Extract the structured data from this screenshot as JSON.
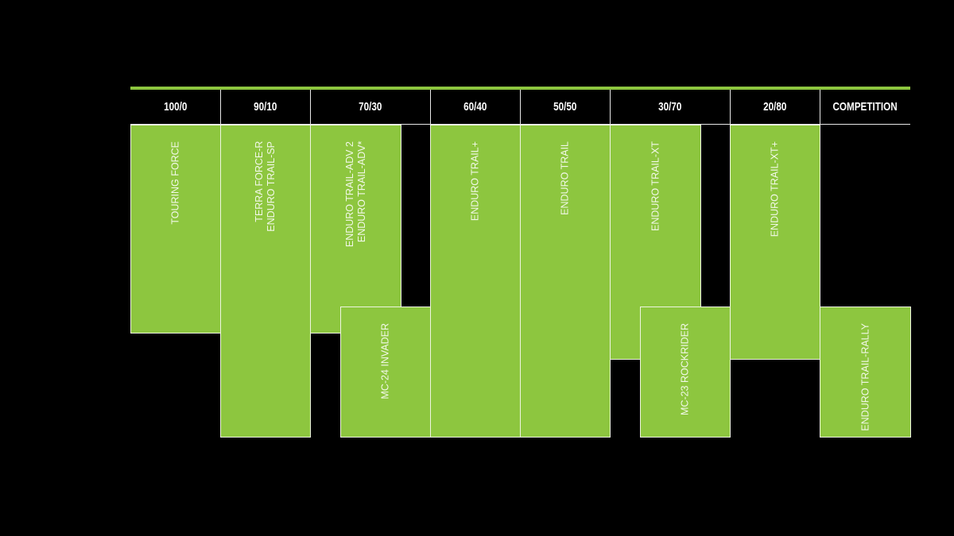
{
  "colors": {
    "accent": "#8dc63f",
    "background": "#000000",
    "text": "#ffffff"
  },
  "headers": [
    "100/0",
    "90/10",
    "70/30",
    "60/40",
    "50/50",
    "30/70",
    "20/80",
    "COMPETITION"
  ],
  "products": [
    {
      "label": "TOURING FORCE"
    },
    {
      "label": "TERRA FORCE-R\nENDURO TRAIL-SP"
    },
    {
      "label": "ENDURO TRAIL-ADV 2\nENDURO TRAIL-ADV*"
    },
    {
      "label": "MC-24 INVADER"
    },
    {
      "label": "ENDURO TRAIL+"
    },
    {
      "label": "ENDURO TRAIL"
    },
    {
      "label": "ENDURO TRAIL-XT"
    },
    {
      "label": "MC-23 ROCKRIDER"
    },
    {
      "label": "ENDURO TRAIL-XT+"
    },
    {
      "label": "ENDURO TRAIL-RALLY"
    }
  ]
}
